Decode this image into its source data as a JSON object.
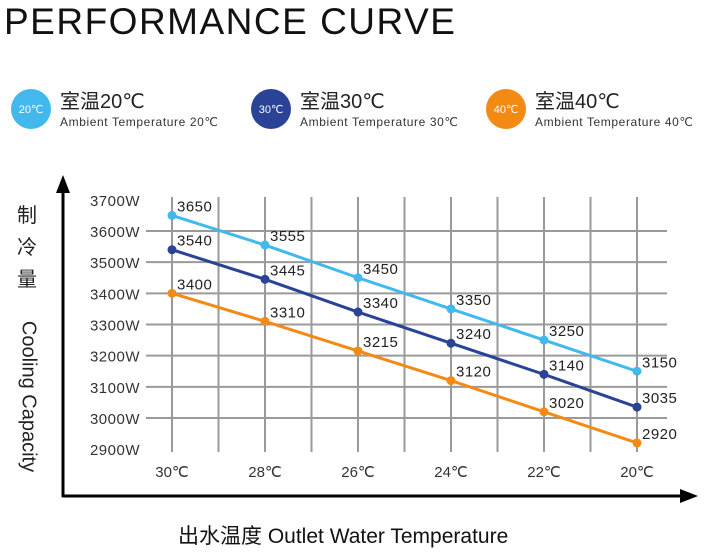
{
  "header": {
    "title": "PERFORMANCE CURVE"
  },
  "legend": [
    {
      "badge": "20℃",
      "cn": "室温20℃",
      "en": "Ambient Temperature 20℃",
      "color": "#42b8ed"
    },
    {
      "badge": "30℃",
      "cn": "室温30℃",
      "en": "Ambient Temperature 30℃",
      "color": "#2a4397"
    },
    {
      "badge": "40℃",
      "cn": "室温40℃",
      "en": "Ambient Temperature 40℃",
      "color": "#f28a14"
    }
  ],
  "axes": {
    "ylabel_cn": [
      "制",
      "冷",
      "量"
    ],
    "ylabel_en": "Cooling Capacity",
    "xlabel": "出水温度  Outlet Water Temperature"
  },
  "chart_data": {
    "type": "line",
    "title": "PERFORMANCE CURVE",
    "xlabel": "出水温度 Outlet Water Temperature",
    "ylabel": "制冷量 Cooling Capacity",
    "categories": [
      "30℃",
      "28℃",
      "26℃",
      "24℃",
      "22℃",
      "20℃"
    ],
    "y_tick_labels": [
      "3700W",
      "3600W",
      "3500W",
      "3400W",
      "3300W",
      "3200W",
      "3100W",
      "3000W",
      "2900W"
    ],
    "y_ticks": [
      3700,
      3600,
      3500,
      3400,
      3300,
      3200,
      3100,
      3000,
      2900
    ],
    "ylim": [
      2900,
      3700
    ],
    "grid": true,
    "legend_position": "top",
    "series": [
      {
        "name": "Ambient Temperature 20℃",
        "color": "#42b8ed",
        "values": [
          3650,
          3555,
          3450,
          3350,
          3250,
          3150
        ],
        "labels": [
          "3650",
          "3555",
          "3450",
          "3350",
          "3250",
          "3150"
        ]
      },
      {
        "name": "Ambient Temperature 30℃",
        "color": "#2a4397",
        "values": [
          3540,
          3445,
          3340,
          3240,
          3140,
          3035
        ],
        "labels": [
          "3540",
          "3445",
          "3340",
          "3240",
          "3140",
          "3035"
        ]
      },
      {
        "name": "Ambient Temperature 40℃",
        "color": "#f28a14",
        "values": [
          3400,
          3310,
          3215,
          3120,
          3020,
          2920
        ],
        "labels": [
          "3400",
          "3310",
          "3215",
          "3120",
          "3020",
          "2920"
        ]
      }
    ]
  }
}
